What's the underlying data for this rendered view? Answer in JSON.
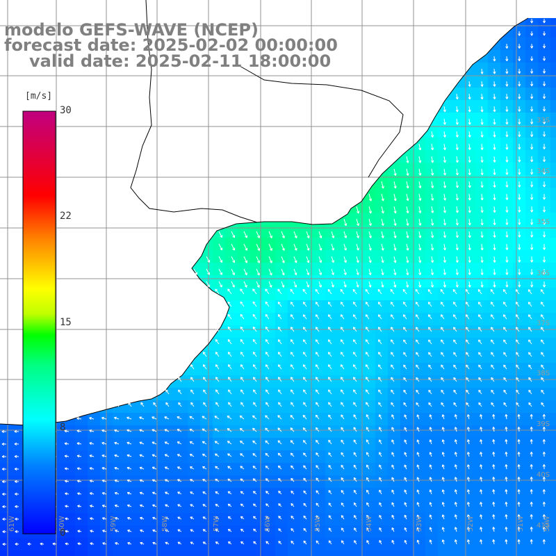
{
  "title": {
    "line1": "modelo GEFS-WAVE (NCEP)",
    "line2": "forecast date: 2025-02-02 00:00:00",
    "line3": "valid date: 2025-02-11 18:00:00"
  },
  "colorbar": {
    "unit": "[m/s]",
    "ticks": [
      "30",
      "22",
      "15",
      "8",
      "0"
    ],
    "tick_values": [
      30,
      22,
      15,
      8,
      0
    ],
    "range": [
      0,
      30
    ],
    "colors": [
      "#0000ff",
      "#0080ff",
      "#00ffff",
      "#00ff00",
      "#ffff00",
      "#ff8000",
      "#ff0000",
      "#c00080"
    ]
  },
  "map": {
    "variable": "wind speed",
    "unit": "m/s",
    "land_color": "#ffffff",
    "coastline_color": "#000000",
    "grid_color": "#909090",
    "lon_labels": [
      "61W",
      "60W",
      "59W",
      "58W",
      "57W",
      "56W",
      "55W",
      "54W",
      "53W",
      "52W",
      "51W",
      "50W"
    ],
    "lat_labels": [
      "33S",
      "34S",
      "35S",
      "36S",
      "37S",
      "38S",
      "39S",
      "40S",
      "41S"
    ],
    "speed_field_m_s": [
      [
        2,
        2,
        3,
        4,
        5,
        6,
        6,
        5,
        4,
        3,
        3,
        4,
        5,
        5,
        4,
        3
      ],
      [
        2,
        3,
        4,
        6,
        7,
        7,
        6,
        5,
        4,
        3,
        4,
        5,
        6,
        6,
        5,
        4
      ],
      [
        3,
        4,
        6,
        8,
        8,
        7,
        6,
        6,
        7,
        8,
        9,
        9,
        8,
        8,
        7,
        6
      ],
      [
        4,
        6,
        8,
        9,
        9,
        9,
        9,
        10,
        12,
        13,
        12,
        11,
        10,
        9,
        8,
        7
      ],
      [
        5,
        7,
        9,
        10,
        10,
        10,
        11,
        12,
        11,
        10,
        10,
        10,
        9,
        9,
        8,
        8
      ],
      [
        5,
        6,
        7,
        8,
        8,
        8,
        8,
        8,
        7,
        7,
        7,
        7,
        7,
        7,
        7,
        7
      ],
      [
        5,
        6,
        6,
        7,
        7,
        7,
        7,
        7,
        7,
        7,
        7,
        6,
        6,
        6,
        6,
        6
      ],
      [
        4,
        4,
        4,
        5,
        5,
        5,
        6,
        6,
        6,
        6,
        6,
        5,
        5,
        5,
        5,
        5
      ],
      [
        3,
        3,
        3,
        4,
        4,
        4,
        4,
        4,
        4,
        5,
        5,
        5,
        5,
        5,
        5,
        5
      ],
      [
        2,
        2,
        2,
        3,
        3,
        3,
        3,
        3,
        4,
        4,
        4,
        4,
        5,
        5,
        5,
        5
      ]
    ]
  }
}
